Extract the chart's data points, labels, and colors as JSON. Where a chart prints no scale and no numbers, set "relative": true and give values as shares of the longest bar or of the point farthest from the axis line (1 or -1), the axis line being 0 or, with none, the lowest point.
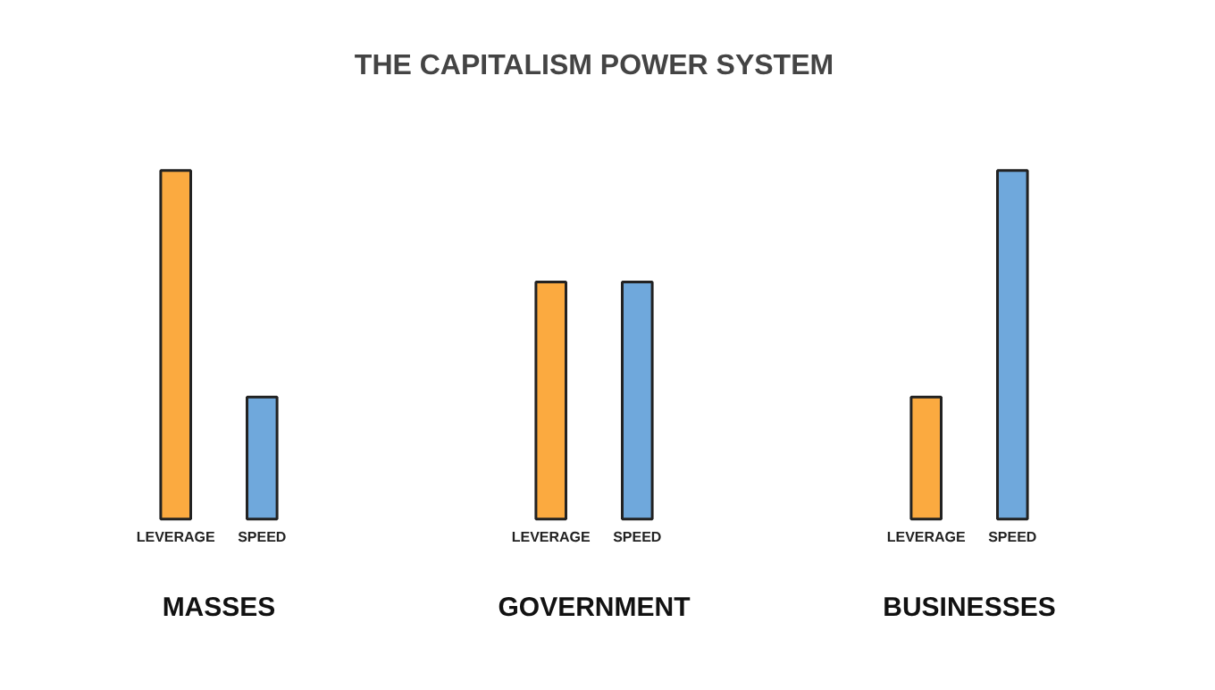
{
  "chart_data": {
    "type": "bar",
    "title": "THE CAPITALISM POWER SYSTEM",
    "relative": true,
    "categories": [
      "MASSES",
      "GOVERNMENT",
      "BUSINESSES"
    ],
    "series": [
      {
        "name": "LEVERAGE",
        "color": "#fbaa40",
        "values": [
          1.0,
          0.68,
          0.35
        ]
      },
      {
        "name": "SPEED",
        "color": "#6fa8dc",
        "values": [
          0.35,
          0.68,
          1.0
        ]
      }
    ]
  }
}
